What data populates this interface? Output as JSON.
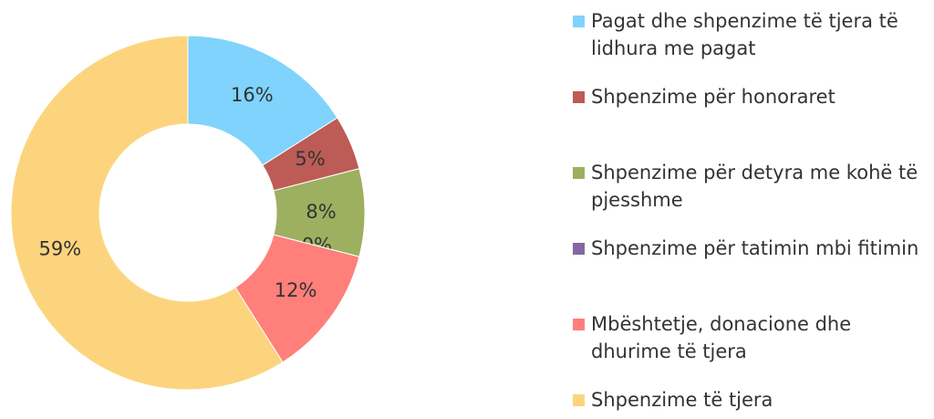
{
  "chart_data": {
    "type": "donut",
    "categories": [
      "Pagat dhe shpenzime të tjera të lidhura me pagat",
      "Shpenzime për honoraret",
      "Shpenzime për detyra me kohë të pjesshme",
      "Shpenzime për tatimin mbi fitimin",
      "Mbështetje, donacione dhe dhurime të tjera",
      "Shpenzime të tjera"
    ],
    "values": [
      16,
      5,
      8,
      0,
      12,
      59
    ],
    "value_labels": [
      "16%",
      "5%",
      "8%",
      "0%",
      "12%",
      "59%"
    ],
    "colors": [
      "#7fd3fc",
      "#bd5b56",
      "#9cb05f",
      "#8467a3",
      "#ff7f7a",
      "#fdd47e"
    ],
    "legend": "right"
  }
}
